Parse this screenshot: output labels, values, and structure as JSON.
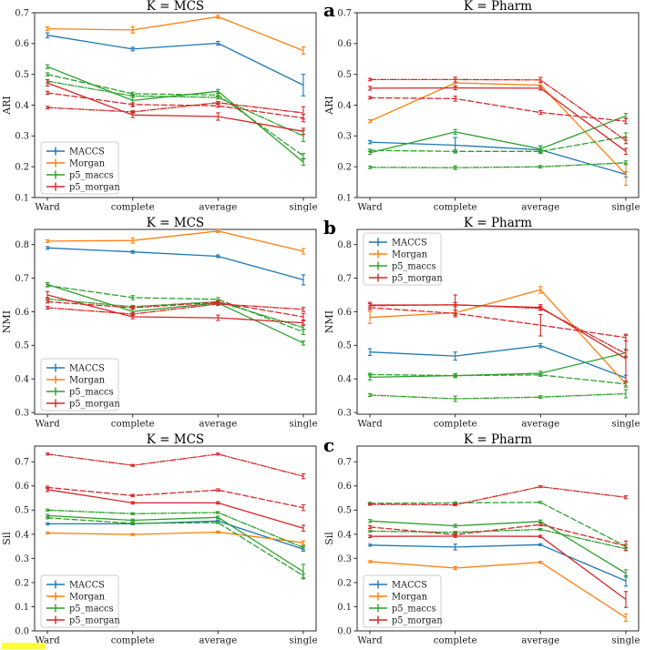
{
  "figure": {
    "panel_letters": [
      "a",
      "b",
      "c"
    ],
    "legend_labels": [
      "MACCS",
      "Morgan",
      "p5_maccs",
      "p5_morgan"
    ],
    "colors": {
      "MACCS": "#1f77b4",
      "Morgan": "#ff7f0e",
      "p5_maccs": "#2ca02c",
      "p5_morgan": "#d62728"
    },
    "highlight": {
      "color": "#ffff38"
    },
    "axis_text_color": "#1a1a1a",
    "spine_color": "#2b2b2b"
  },
  "chart_data": [
    {
      "type": "line",
      "title": "K = MCS",
      "ylabel": "ARI",
      "categories": [
        "Ward",
        "complete",
        "average",
        "single"
      ],
      "ylim": [
        0.1,
        0.7
      ],
      "yticks": [
        0.1,
        0.2,
        0.3,
        0.4,
        0.5,
        0.6,
        0.7
      ],
      "legend_loc": "lower left",
      "fig_label": null,
      "series": [
        {
          "name": "MACCS",
          "linestyle": "solid",
          "values": [
            0.627,
            0.582,
            0.601,
            0.465
          ],
          "errors": [
            0.008,
            0.006,
            0.006,
            0.035
          ]
        },
        {
          "name": "Morgan",
          "linestyle": "solid",
          "values": [
            0.648,
            0.644,
            0.687,
            0.577
          ],
          "errors": [
            0.006,
            0.01,
            0.005,
            0.012
          ]
        },
        {
          "name": "p5_maccs",
          "linestyle": "solid",
          "values": [
            0.525,
            0.415,
            0.445,
            0.215
          ],
          "errors": [
            0.006,
            0.02,
            0.006,
            0.01
          ]
        },
        {
          "name": "p5_maccs",
          "linestyle": "dashed",
          "values": [
            0.5,
            0.437,
            0.433,
            0.235
          ],
          "errors": [
            0.005,
            0.005,
            0.005,
            0.008
          ]
        },
        {
          "name": "p5_maccs",
          "linestyle": "dashdot",
          "values": [
            0.478,
            0.43,
            0.425,
            0.3
          ],
          "errors": [
            0.005,
            0.005,
            0.005,
            0.018
          ]
        },
        {
          "name": "p5_morgan",
          "linestyle": "solid",
          "values": [
            0.472,
            0.368,
            0.363,
            0.315
          ],
          "errors": [
            0.01,
            0.008,
            0.012,
            0.01
          ]
        },
        {
          "name": "p5_morgan",
          "linestyle": "dashed",
          "values": [
            0.44,
            0.402,
            0.398,
            0.358
          ],
          "errors": [
            0.005,
            0.005,
            0.005,
            0.012
          ]
        },
        {
          "name": "p5_morgan",
          "linestyle": "dashdot",
          "values": [
            0.392,
            0.378,
            0.408,
            0.375
          ],
          "errors": [
            0.004,
            0.004,
            0.004,
            0.02
          ]
        }
      ]
    },
    {
      "type": "line",
      "title": "K = Pharm",
      "ylabel": "ARI",
      "categories": [
        "Ward",
        "complete",
        "average",
        "single"
      ],
      "ylim": [
        0.1,
        0.7
      ],
      "yticks": [
        0.1,
        0.2,
        0.3,
        0.4,
        0.5,
        0.6,
        0.7
      ],
      "legend_loc": null,
      "fig_label": "a",
      "series": [
        {
          "name": "MACCS",
          "linestyle": "solid",
          "values": [
            0.28,
            0.27,
            0.255,
            0.175
          ],
          "errors": [
            0.005,
            0.025,
            0.012,
            0.008
          ]
        },
        {
          "name": "Morgan",
          "linestyle": "solid",
          "values": [
            0.348,
            0.472,
            0.465,
            0.175
          ],
          "errors": [
            0.005,
            0.012,
            0.01,
            0.035
          ]
        },
        {
          "name": "p5_maccs",
          "linestyle": "solid",
          "values": [
            0.245,
            0.313,
            0.258,
            0.365
          ],
          "errors": [
            0.005,
            0.008,
            0.01,
            0.008
          ]
        },
        {
          "name": "p5_maccs",
          "linestyle": "dashed",
          "values": [
            0.253,
            0.25,
            0.25,
            0.298
          ],
          "errors": [
            0.004,
            0.004,
            0.004,
            0.012
          ]
        },
        {
          "name": "p5_maccs",
          "linestyle": "dashdot",
          "values": [
            0.198,
            0.197,
            0.2,
            0.213
          ],
          "errors": [
            0.004,
            0.006,
            0.004,
            0.006
          ]
        },
        {
          "name": "p5_morgan",
          "linestyle": "solid",
          "values": [
            0.455,
            0.456,
            0.455,
            0.25
          ],
          "errors": [
            0.006,
            0.006,
            0.006,
            0.01
          ]
        },
        {
          "name": "p5_morgan",
          "linestyle": "dashed",
          "values": [
            0.424,
            0.421,
            0.376,
            0.348
          ],
          "errors": [
            0.004,
            0.008,
            0.006,
            0.008
          ]
        },
        {
          "name": "p5_morgan",
          "linestyle": "dashdot",
          "values": [
            0.483,
            0.483,
            0.482,
            0.285
          ],
          "errors": [
            0.004,
            0.008,
            0.008,
            0.01
          ]
        }
      ]
    },
    {
      "type": "line",
      "title": "K = MCS",
      "ylabel": "NMI",
      "categories": [
        "Ward",
        "complete",
        "average",
        "single"
      ],
      "ylim": [
        0.295,
        0.845
      ],
      "yticks": [
        0.3,
        0.4,
        0.5,
        0.6,
        0.7,
        0.8
      ],
      "legend_loc": "lower left",
      "fig_label": null,
      "series": [
        {
          "name": "MACCS",
          "linestyle": "solid",
          "values": [
            0.79,
            0.778,
            0.765,
            0.695
          ],
          "errors": [
            0.004,
            0.004,
            0.004,
            0.015
          ]
        },
        {
          "name": "Morgan",
          "linestyle": "solid",
          "values": [
            0.81,
            0.812,
            0.84,
            0.78
          ],
          "errors": [
            0.004,
            0.008,
            0.004,
            0.008
          ]
        },
        {
          "name": "p5_maccs",
          "linestyle": "solid",
          "values": [
            0.681,
            0.601,
            0.626,
            0.507
          ],
          "errors": [
            0.006,
            0.012,
            0.006,
            0.006
          ]
        },
        {
          "name": "p5_maccs",
          "linestyle": "dashed",
          "values": [
            0.678,
            0.642,
            0.637,
            0.54
          ],
          "errors": [
            0.004,
            0.006,
            0.005,
            0.008
          ]
        },
        {
          "name": "p5_maccs",
          "linestyle": "dashdot",
          "values": [
            0.638,
            0.615,
            0.63,
            0.553
          ],
          "errors": [
            0.004,
            0.004,
            0.004,
            0.006
          ]
        },
        {
          "name": "p5_morgan",
          "linestyle": "solid",
          "values": [
            0.65,
            0.585,
            0.582,
            0.567
          ],
          "errors": [
            0.01,
            0.006,
            0.008,
            0.006
          ]
        },
        {
          "name": "p5_morgan",
          "linestyle": "dashed",
          "values": [
            0.63,
            0.612,
            0.628,
            0.585
          ],
          "errors": [
            0.004,
            0.004,
            0.004,
            0.01
          ]
        },
        {
          "name": "p5_morgan",
          "linestyle": "dashdot",
          "values": [
            0.612,
            0.593,
            0.623,
            0.607
          ],
          "errors": [
            0.004,
            0.004,
            0.004,
            0.006
          ]
        }
      ]
    },
    {
      "type": "line",
      "title": "K = Pharm",
      "ylabel": "NMI",
      "categories": [
        "Ward",
        "complete",
        "average",
        "single"
      ],
      "ylim": [
        0.295,
        0.845
      ],
      "yticks": [
        0.3,
        0.4,
        0.5,
        0.6,
        0.7,
        0.8
      ],
      "legend_loc": "upper left",
      "fig_label": "b",
      "series": [
        {
          "name": "MACCS",
          "linestyle": "solid",
          "values": [
            0.48,
            0.468,
            0.499,
            0.403
          ],
          "errors": [
            0.01,
            0.012,
            0.006,
            0.008
          ]
        },
        {
          "name": "Morgan",
          "linestyle": "solid",
          "values": [
            0.583,
            0.597,
            0.665,
            0.385
          ],
          "errors": [
            0.018,
            0.008,
            0.01,
            0.01
          ]
        },
        {
          "name": "p5_maccs",
          "linestyle": "solid",
          "values": [
            0.405,
            0.41,
            0.417,
            0.478
          ],
          "errors": [
            0.008,
            0.006,
            0.006,
            0.01
          ]
        },
        {
          "name": "p5_maccs",
          "linestyle": "dashed",
          "values": [
            0.413,
            0.41,
            0.412,
            0.385
          ],
          "errors": [
            0.004,
            0.004,
            0.004,
            0.006
          ]
        },
        {
          "name": "p5_maccs",
          "linestyle": "dashdot",
          "values": [
            0.352,
            0.341,
            0.346,
            0.356
          ],
          "errors": [
            0.004,
            0.008,
            0.004,
            0.012
          ]
        },
        {
          "name": "p5_morgan",
          "linestyle": "solid",
          "values": [
            0.62,
            0.62,
            0.613,
            0.46
          ],
          "errors": [
            0.008,
            0.03,
            0.008,
            0.07
          ]
        },
        {
          "name": "p5_morgan",
          "linestyle": "dashed",
          "values": [
            0.612,
            0.595,
            0.56,
            0.523
          ],
          "errors": [
            0.006,
            0.01,
            0.032,
            0.01
          ]
        },
        {
          "name": "p5_morgan",
          "linestyle": "dashdot",
          "values": [
            0.618,
            0.621,
            0.61,
            0.475
          ],
          "errors": [
            0.006,
            0.006,
            0.006,
            0.01
          ]
        }
      ]
    },
    {
      "type": "line",
      "title": "K = MCS",
      "ylabel": "Sil",
      "categories": [
        "Ward",
        "complete",
        "average",
        "single"
      ],
      "ylim": [
        0.0,
        0.765
      ],
      "yticks": [
        0.0,
        0.1,
        0.2,
        0.3,
        0.4,
        0.5,
        0.6,
        0.7
      ],
      "legend_loc": "lower left",
      "fig_label": null,
      "series": [
        {
          "name": "MACCS",
          "linestyle": "solid",
          "values": [
            0.443,
            0.443,
            0.455,
            0.338
          ],
          "errors": [
            0.004,
            0.004,
            0.004,
            0.008
          ]
        },
        {
          "name": "Morgan",
          "linestyle": "solid",
          "values": [
            0.405,
            0.399,
            0.409,
            0.365
          ],
          "errors": [
            0.004,
            0.004,
            0.004,
            0.008
          ]
        },
        {
          "name": "p5_maccs",
          "linestyle": "solid",
          "values": [
            0.477,
            0.458,
            0.47,
            0.245
          ],
          "errors": [
            0.005,
            0.005,
            0.005,
            0.03
          ]
        },
        {
          "name": "p5_maccs",
          "linestyle": "dashed",
          "values": [
            0.468,
            0.445,
            0.448,
            0.228
          ],
          "errors": [
            0.004,
            0.004,
            0.004,
            0.008
          ]
        },
        {
          "name": "p5_maccs",
          "linestyle": "dashdot",
          "values": [
            0.5,
            0.485,
            0.49,
            0.345
          ],
          "errors": [
            0.004,
            0.004,
            0.004,
            0.008
          ]
        },
        {
          "name": "p5_morgan",
          "linestyle": "solid",
          "values": [
            0.585,
            0.53,
            0.53,
            0.425
          ],
          "errors": [
            0.008,
            0.005,
            0.005,
            0.012
          ]
        },
        {
          "name": "p5_morgan",
          "linestyle": "dashed",
          "values": [
            0.594,
            0.56,
            0.583,
            0.51
          ],
          "errors": [
            0.005,
            0.005,
            0.005,
            0.012
          ]
        },
        {
          "name": "p5_morgan",
          "linestyle": "dashdot",
          "values": [
            0.732,
            0.685,
            0.732,
            0.64
          ],
          "errors": [
            0.004,
            0.004,
            0.004,
            0.01
          ]
        }
      ]
    },
    {
      "type": "line",
      "title": "K = Pharm",
      "ylabel": "Sil",
      "categories": [
        "Ward",
        "complete",
        "average",
        "single"
      ],
      "ylim": [
        0.0,
        0.765
      ],
      "yticks": [
        0.0,
        0.1,
        0.2,
        0.3,
        0.4,
        0.5,
        0.6,
        0.7
      ],
      "legend_loc": "lower left",
      "fig_label": "c",
      "series": [
        {
          "name": "MACCS",
          "linestyle": "solid",
          "values": [
            0.355,
            0.347,
            0.357,
            0.207
          ],
          "errors": [
            0.004,
            0.012,
            0.004,
            0.022
          ]
        },
        {
          "name": "Morgan",
          "linestyle": "solid",
          "values": [
            0.287,
            0.26,
            0.284,
            0.055
          ],
          "errors": [
            0.004,
            0.006,
            0.004,
            0.015
          ]
        },
        {
          "name": "p5_maccs",
          "linestyle": "solid",
          "values": [
            0.455,
            0.435,
            0.453,
            0.238
          ],
          "errors": [
            0.006,
            0.006,
            0.006,
            0.015
          ]
        },
        {
          "name": "p5_maccs",
          "linestyle": "dashed",
          "values": [
            0.528,
            0.53,
            0.532,
            0.35
          ],
          "errors": [
            0.004,
            0.004,
            0.004,
            0.008
          ]
        },
        {
          "name": "p5_maccs",
          "linestyle": "dashdot",
          "values": [
            0.413,
            0.408,
            0.42,
            0.34
          ],
          "errors": [
            0.004,
            0.004,
            0.004,
            0.006
          ]
        },
        {
          "name": "p5_morgan",
          "linestyle": "solid",
          "values": [
            0.391,
            0.392,
            0.391,
            0.13
          ],
          "errors": [
            0.005,
            0.005,
            0.005,
            0.033
          ]
        },
        {
          "name": "p5_morgan",
          "linestyle": "dashed",
          "values": [
            0.43,
            0.398,
            0.44,
            0.352
          ],
          "errors": [
            0.006,
            0.005,
            0.005,
            0.02
          ]
        },
        {
          "name": "p5_morgan",
          "linestyle": "dashdot",
          "values": [
            0.524,
            0.522,
            0.597,
            0.553
          ],
          "errors": [
            0.004,
            0.004,
            0.004,
            0.006
          ]
        }
      ]
    }
  ]
}
